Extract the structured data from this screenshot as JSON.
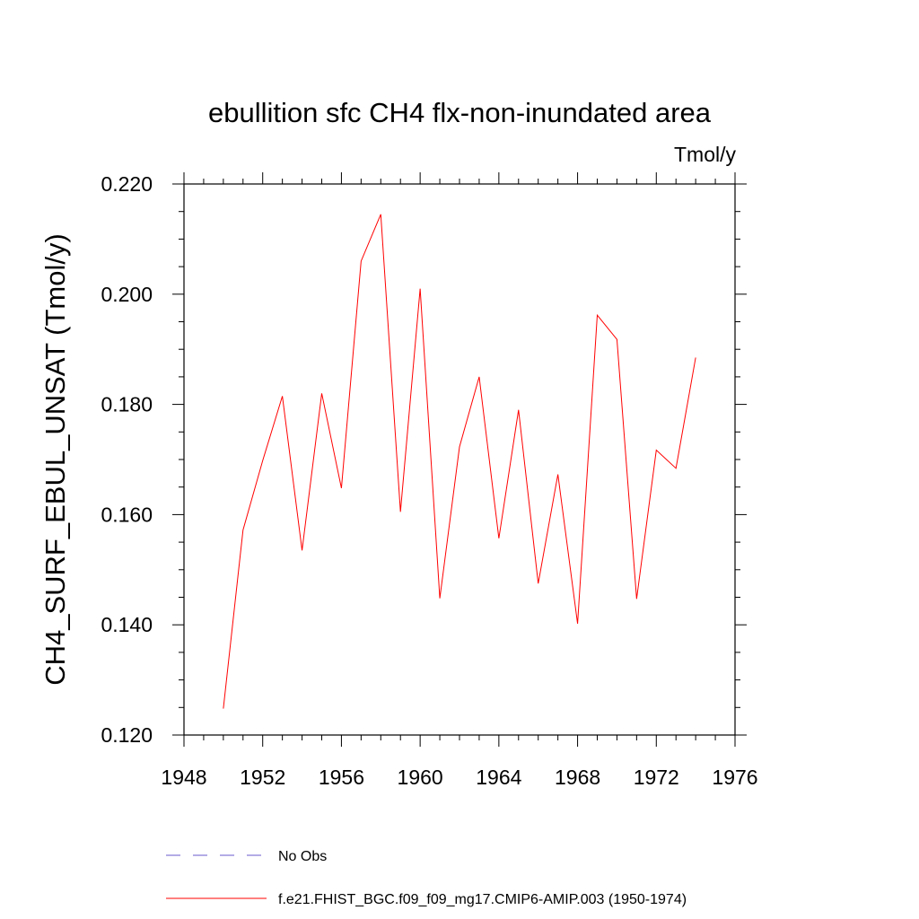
{
  "chart_data": {
    "type": "line",
    "title": "ebullition sfc CH4 flx-non-inundated area",
    "units_label": "Tmol/y",
    "xlabel": "",
    "ylabel": "CH4_SURF_EBUL_UNSAT  (Tmol/y)",
    "xlim": [
      1948,
      1976
    ],
    "ylim": [
      0.12,
      0.22
    ],
    "x_ticks": [
      "1948",
      "1952",
      "1956",
      "1960",
      "1964",
      "1968",
      "1972",
      "1976"
    ],
    "y_ticks": [
      "0.120",
      "0.140",
      "0.160",
      "0.180",
      "0.200",
      "0.220"
    ],
    "grid": false,
    "legend_position": "bottom",
    "series": [
      {
        "name": "f.e21.FHIST_BGC.f09_f09_mg17.CMIP6-AMIP.003 (1950-1974)",
        "color": "#ff0000",
        "style": "solid",
        "x": [
          1950,
          1951,
          1952,
          1953,
          1954,
          1955,
          1956,
          1957,
          1958,
          1959,
          1960,
          1961,
          1962,
          1963,
          1964,
          1965,
          1966,
          1967,
          1968,
          1969,
          1970,
          1971,
          1972,
          1973,
          1974
        ],
        "y": [
          0.1248,
          0.1572,
          0.1698,
          0.1815,
          0.1535,
          0.182,
          0.1648,
          0.206,
          0.2145,
          0.1605,
          0.201,
          0.1448,
          0.1723,
          0.185,
          0.1557,
          0.179,
          0.1475,
          0.1673,
          0.1402,
          0.1962,
          0.1918,
          0.1447,
          0.1717,
          0.1684,
          0.1885
        ]
      }
    ],
    "legend": [
      {
        "label": "No Obs",
        "color": "#6a5acd",
        "style": "dashed"
      },
      {
        "label": "f.e21.FHIST_BGC.f09_f09_mg17.CMIP6-AMIP.003 (1950-1974)",
        "color": "#ff0000",
        "style": "solid"
      }
    ]
  }
}
